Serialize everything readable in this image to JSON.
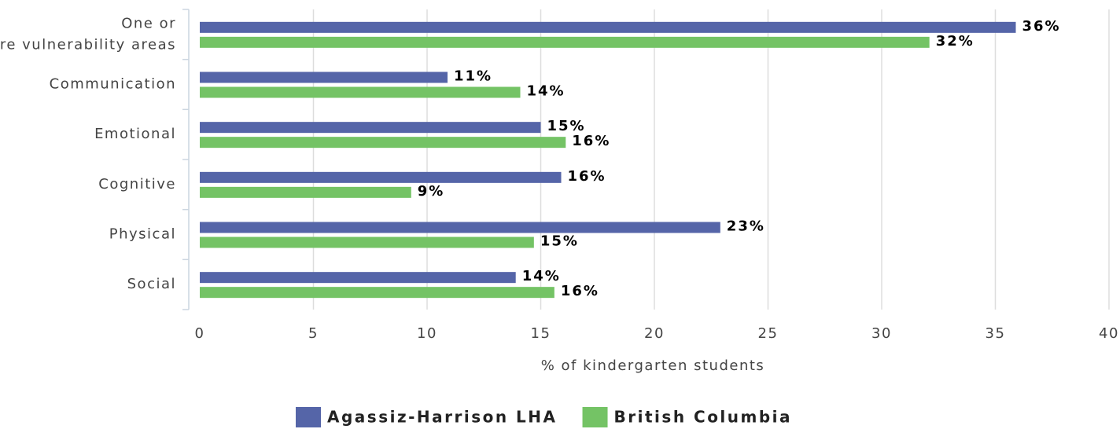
{
  "chart_data": {
    "type": "barh",
    "categories": [
      "One or more vulnerability areas",
      "Communication",
      "Emotional",
      "Cognitive",
      "Physical",
      "Social"
    ],
    "series": [
      {
        "name": "Agassiz-Harrison LHA",
        "color": "#5565a8",
        "values": [
          35.9,
          10.9,
          15,
          15.9,
          22.9,
          13.9
        ],
        "value_labels": [
          "36%",
          "11%",
          "15%",
          "16%",
          "23%",
          "14%"
        ]
      },
      {
        "name": "British Columbia",
        "color": "#74c365",
        "values": [
          32.1,
          14.1,
          16.1,
          9.3,
          14.7,
          15.6
        ],
        "value_labels": [
          "32%",
          "14%",
          "16%",
          "9%",
          "15%",
          "16%"
        ]
      }
    ],
    "xlabel": "% of kindergarten students",
    "xlim": [
      0,
      40
    ],
    "xticks": [
      0,
      5,
      10,
      15,
      20,
      25,
      30,
      35,
      40
    ],
    "grid": true,
    "legend": "bottom"
  }
}
